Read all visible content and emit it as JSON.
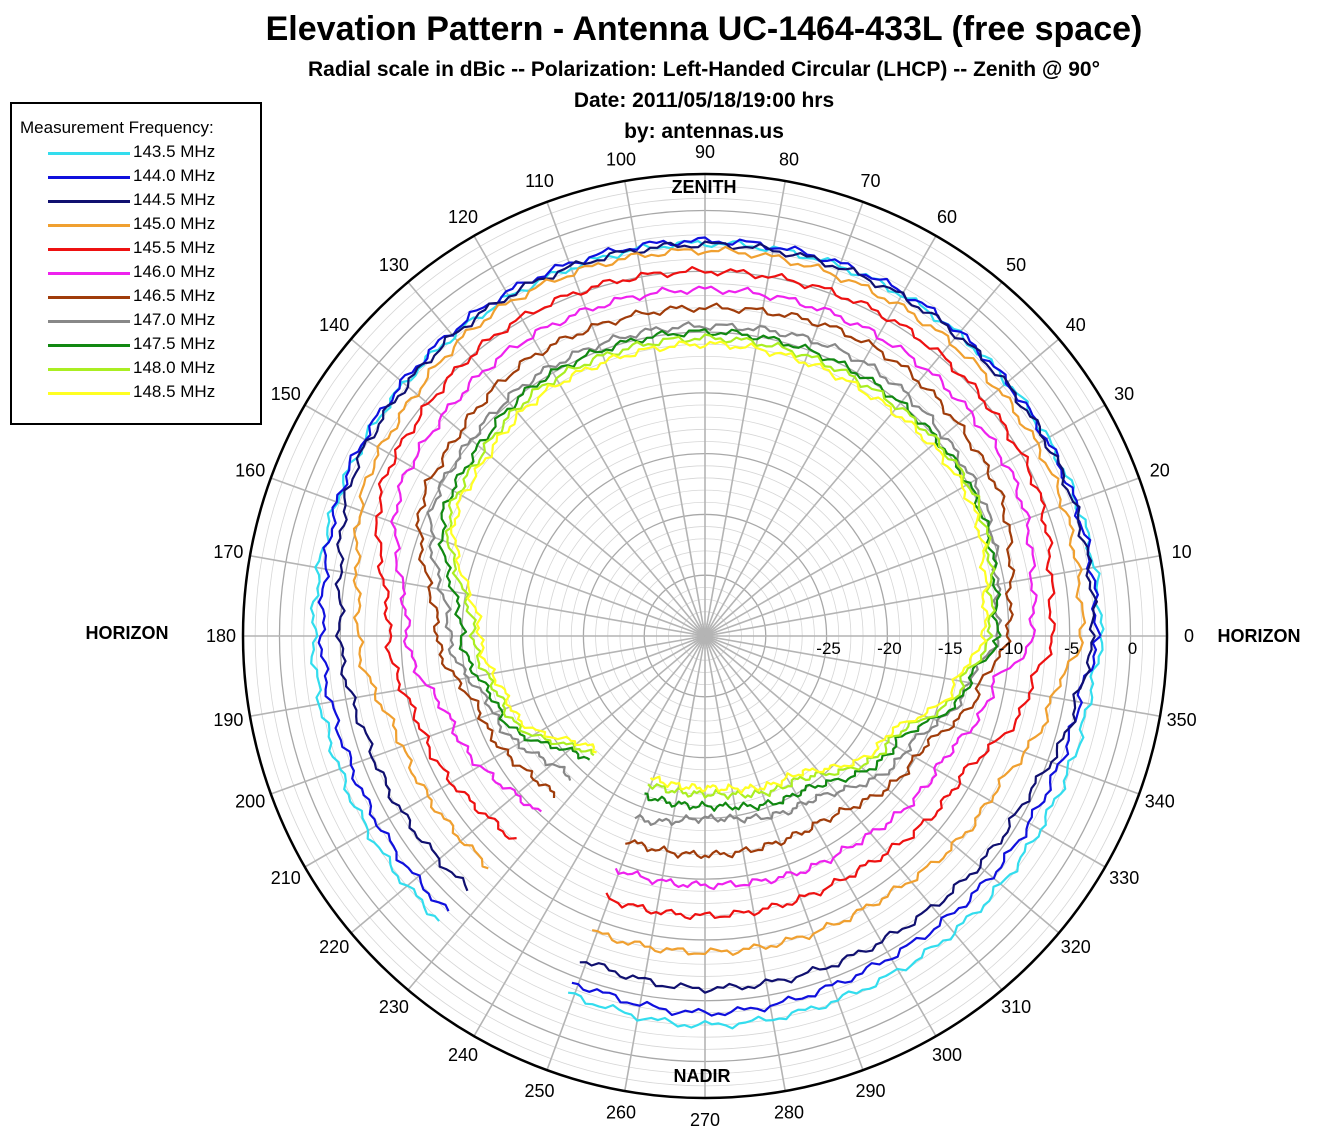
{
  "title": "Elevation Pattern - Antenna UC-1464-433L (free space)",
  "subtitle_lines": [
    "Radial scale in dBic -- Polarization: Left-Handed Circular (LHCP) -- Zenith @ 90°",
    "Date: 2011/05/18/19:00 hrs",
    "by: antennas.us"
  ],
  "legend": {
    "title": "Measurement Frequency:",
    "placement": "top-left"
  },
  "annotations": {
    "zenith": "ZENITH",
    "nadir": "NADIR",
    "horizon_left": "HORIZON",
    "horizon_right": "HORIZON"
  },
  "chart_data": {
    "type": "polar-line",
    "angle_unit": "degrees",
    "angle_ticks": [
      0,
      10,
      20,
      30,
      40,
      50,
      60,
      70,
      80,
      90,
      100,
      110,
      120,
      130,
      140,
      150,
      160,
      170,
      180,
      190,
      200,
      210,
      220,
      230,
      240,
      250,
      260,
      270,
      280,
      290,
      300,
      310,
      320,
      330,
      340,
      350
    ],
    "radial_unit": "dBic",
    "radial_range": [
      -35,
      3
    ],
    "radial_tick_labels": [
      "-25",
      "-20",
      "-15",
      "-10",
      "-5",
      "0"
    ],
    "radial_ticks": [
      -25,
      -20,
      -15,
      -10,
      -5,
      0
    ],
    "grid": true,
    "missing_sector": [
      227,
      249
    ],
    "series": [
      {
        "name": "143.5 MHz",
        "color": "#33ddee",
        "theta": [
          0,
          30,
          60,
          90,
          120,
          150,
          180,
          200,
          227,
          249,
          270,
          300,
          330,
          350
        ],
        "r": [
          -2.5,
          -2.5,
          -2.6,
          -2.7,
          -2.8,
          -2.7,
          -2.8,
          -3,
          -3,
          -3.5,
          -3,
          -3.2,
          -3.2,
          -3
        ]
      },
      {
        "name": "144.0 MHz",
        "color": "#1010dd",
        "theta": [
          0,
          30,
          60,
          90,
          120,
          150,
          180,
          200,
          227,
          249,
          270,
          300,
          330,
          350
        ],
        "r": [
          -2.8,
          -2.6,
          -2.4,
          -2.5,
          -2.4,
          -2.6,
          -3.5,
          -4,
          -4,
          -4.5,
          -4,
          -4.5,
          -4.2,
          -3.8
        ]
      },
      {
        "name": "144.5 MHz",
        "color": "#101070",
        "theta": [
          0,
          30,
          60,
          90,
          120,
          150,
          180,
          200,
          227,
          249,
          270,
          300,
          330,
          350
        ],
        "r": [
          -3,
          -2.7,
          -2.7,
          -2.8,
          -2.7,
          -3,
          -5,
          -6,
          -6.5,
          -6.5,
          -6,
          -6,
          -5.5,
          -4
        ]
      },
      {
        "name": "145.0 MHz",
        "color": "#f0a030",
        "theta": [
          0,
          30,
          60,
          90,
          120,
          150,
          180,
          200,
          227,
          249,
          270,
          300,
          330,
          350
        ],
        "r": [
          -4,
          -3.5,
          -3.5,
          -3.3,
          -3.2,
          -4.2,
          -6.5,
          -8.5,
          -9,
          -9,
          -9,
          -9,
          -8,
          -6
        ]
      },
      {
        "name": "145.5 MHz",
        "color": "#ee1111",
        "theta": [
          0,
          30,
          60,
          90,
          120,
          150,
          180,
          200,
          227,
          249,
          270,
          300,
          330,
          350
        ],
        "r": [
          -6.5,
          -5,
          -4.8,
          -5,
          -4.8,
          -5.5,
          -9,
          -10.5,
          -12,
          -12,
          -12,
          -12,
          -11,
          -8
        ]
      },
      {
        "name": "146.0 MHz",
        "color": "#ee22ee",
        "theta": [
          0,
          30,
          60,
          90,
          120,
          150,
          180,
          200,
          227,
          249,
          270,
          300,
          330,
          350
        ],
        "r": [
          -8,
          -6.5,
          -6.5,
          -6.5,
          -6.5,
          -7,
          -10.5,
          -13,
          -15,
          -14.5,
          -14.5,
          -14,
          -13,
          -11
        ]
      },
      {
        "name": "146.5 MHz",
        "color": "#a03c0a",
        "theta": [
          0,
          30,
          60,
          90,
          120,
          150,
          180,
          200,
          227,
          249,
          270,
          300,
          330,
          350
        ],
        "r": [
          -10,
          -8,
          -7.5,
          -8,
          -8,
          -9,
          -13,
          -15.5,
          -17,
          -17,
          -17,
          -17,
          -15,
          -12
        ]
      },
      {
        "name": "147.0 MHz",
        "color": "#888888",
        "theta": [
          0,
          30,
          60,
          90,
          120,
          150,
          180,
          200,
          227,
          249,
          270,
          300,
          330,
          350
        ],
        "r": [
          -11,
          -9.5,
          -9,
          -9.5,
          -9.5,
          -10,
          -14,
          -16.5,
          -19,
          -19,
          -20,
          -19,
          -16,
          -13
        ]
      },
      {
        "name": "147.5 MHz",
        "color": "#118811",
        "theta": [
          0,
          30,
          60,
          90,
          120,
          150,
          180,
          200,
          227,
          249,
          270,
          300,
          330,
          350
        ],
        "r": [
          -11,
          -10,
          -10,
          -10,
          -10,
          -11,
          -15,
          -17,
          -21,
          -21,
          -21,
          -20,
          -17,
          -13
        ]
      },
      {
        "name": "148.0 MHz",
        "color": "#aaee22",
        "theta": [
          0,
          30,
          60,
          90,
          120,
          150,
          180,
          200,
          227,
          249,
          270,
          300,
          330,
          350
        ],
        "r": [
          -11.5,
          -10,
          -10.5,
          -10.5,
          -10.5,
          -11.5,
          -16,
          -17.5,
          -21.5,
          -22,
          -22,
          -21,
          -17.5,
          -13.5
        ]
      },
      {
        "name": "148.5 MHz",
        "color": "#ffff22",
        "theta": [
          0,
          30,
          60,
          90,
          120,
          150,
          180,
          200,
          227,
          249,
          270,
          300,
          330,
          350
        ],
        "r": [
          -12,
          -10.5,
          -11,
          -11,
          -11,
          -12,
          -16.5,
          -18,
          -22,
          -22.5,
          -22.5,
          -21.5,
          -18,
          -14
        ]
      }
    ]
  }
}
